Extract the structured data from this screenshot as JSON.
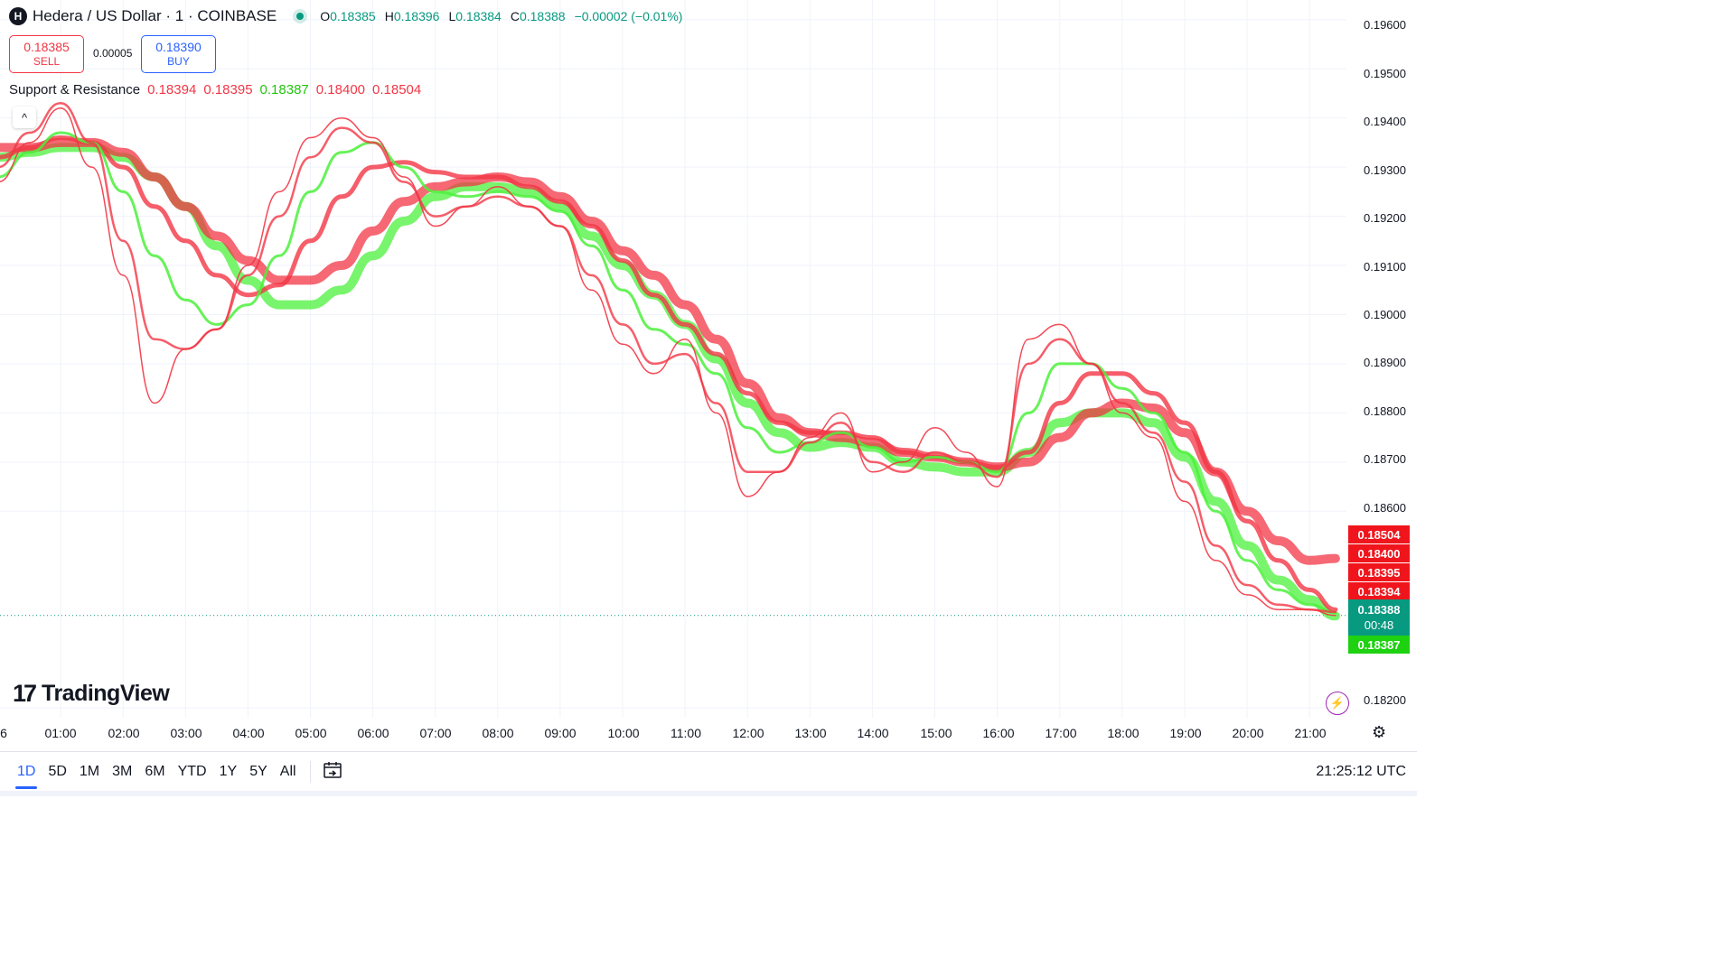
{
  "header": {
    "logo_letter": "H",
    "symbol": "Hedera / US Dollar · 1 · COINBASE",
    "ohlc": {
      "o_key": "O",
      "o": "0.18385",
      "h_key": "H",
      "h": "0.18396",
      "l_key": "L",
      "l": "0.18384",
      "c_key": "C",
      "c": "0.18388",
      "change": "−0.00002 (−0.01%)"
    }
  },
  "trade": {
    "sell_price": "0.18385",
    "sell_label": "SELL",
    "spread": "0.00005",
    "buy_price": "0.18390",
    "buy_label": "BUY"
  },
  "indicator": {
    "name": "Support & Resistance",
    "values": [
      "0.18394",
      "0.18395",
      "0.18387",
      "0.18400",
      "0.18504"
    ]
  },
  "controls": {
    "collapse_glyph": "^"
  },
  "branding": {
    "logo_mark": "17",
    "name": "TradingView"
  },
  "colors": {
    "up": "#089981",
    "resistance": "#f23645",
    "support": "#4cf03c",
    "accent": "#2962ff",
    "text": "#131722"
  },
  "y_axis": [
    "0.19600",
    "0.19500",
    "0.19400",
    "0.19300",
    "0.19200",
    "0.19100",
    "0.19000",
    "0.18900",
    "0.18800",
    "0.18700",
    "0.18600",
    "0.18200"
  ],
  "price_tags": {
    "red": [
      "0.18504",
      "0.18400",
      "0.18395",
      "0.18394"
    ],
    "last_price": "0.18388",
    "countdown": "00:48",
    "green": "0.18387"
  },
  "x_axis": [
    "6",
    "01:00",
    "02:00",
    "03:00",
    "04:00",
    "05:00",
    "06:00",
    "07:00",
    "08:00",
    "09:00",
    "10:00",
    "11:00",
    "12:00",
    "13:00",
    "14:00",
    "15:00",
    "16:00",
    "17:00",
    "18:00",
    "19:00",
    "20:00",
    "21:00"
  ],
  "bottom_bar": {
    "ranges": [
      "1D",
      "5D",
      "1M",
      "3M",
      "6M",
      "YTD",
      "1Y",
      "5Y",
      "All"
    ],
    "active_range": "1D",
    "calendar_icon": "calendar-goto-icon",
    "clock": "21:25:12 UTC"
  },
  "icons": {
    "flash": "lightning-icon",
    "settings": "gear-icon"
  },
  "chart_data": {
    "type": "line",
    "x": [
      "00:00",
      "00:30",
      "01:00",
      "01:30",
      "02:00",
      "02:30",
      "03:00",
      "03:30",
      "04:00",
      "04:30",
      "05:00",
      "05:30",
      "06:00",
      "06:30",
      "07:00",
      "07:30",
      "08:00",
      "08:30",
      "09:00",
      "09:30",
      "10:00",
      "10:30",
      "11:00",
      "11:30",
      "12:00",
      "12:30",
      "13:00",
      "13:30",
      "14:00",
      "14:30",
      "15:00",
      "15:30",
      "16:00",
      "16:30",
      "17:00",
      "17:30",
      "18:00",
      "18:30",
      "19:00",
      "19:30",
      "20:00",
      "20:30",
      "21:00",
      "21:25"
    ],
    "series": [
      {
        "values": [
          0.1927,
          0.1935,
          0.1942,
          0.193,
          0.1908,
          0.1882,
          0.1893,
          0.1897,
          0.191,
          0.1925,
          0.1936,
          0.194,
          0.1936,
          0.1928,
          0.1918,
          0.1922,
          0.1926,
          0.1922,
          0.1918,
          0.1905,
          0.1894,
          0.1888,
          0.1895,
          0.188,
          0.1863,
          0.1868,
          0.1875,
          0.188,
          0.1868,
          0.187,
          0.1877,
          0.1872,
          0.1865,
          0.1895,
          0.1898,
          0.189,
          0.188,
          0.1875,
          0.1862,
          0.185,
          0.1843,
          0.184,
          0.184,
          0.18388
        ]
      },
      {
        "values": [
          0.193,
          0.1937,
          0.1943,
          0.1935,
          0.1915,
          0.1895,
          0.1893,
          0.1897,
          0.1908,
          0.192,
          0.1932,
          0.1938,
          0.1935,
          0.1927,
          0.192,
          0.1922,
          0.1924,
          0.1922,
          0.1918,
          0.1908,
          0.1898,
          0.189,
          0.1892,
          0.1882,
          0.1868,
          0.1868,
          0.1874,
          0.1878,
          0.187,
          0.1868,
          0.1872,
          0.187,
          0.1867,
          0.189,
          0.1895,
          0.189,
          0.1882,
          0.1876,
          0.1866,
          0.1853,
          0.1845,
          0.1841,
          0.184,
          0.18395
        ]
      },
      {
        "values": [
          0.1928,
          0.1933,
          0.1937,
          0.1935,
          0.1925,
          0.1912,
          0.1903,
          0.1898,
          0.1902,
          0.1912,
          0.1925,
          0.1933,
          0.1935,
          0.193,
          0.1925,
          0.1924,
          0.1925,
          0.1924,
          0.1921,
          0.1914,
          0.1905,
          0.1897,
          0.1894,
          0.1888,
          0.1877,
          0.1872,
          0.1874,
          0.1876,
          0.1873,
          0.187,
          0.1871,
          0.187,
          0.1868,
          0.188,
          0.189,
          0.189,
          0.1885,
          0.188,
          0.1872,
          0.186,
          0.185,
          0.1844,
          0.1841,
          0.18394
        ]
      },
      {
        "values": [
          0.1932,
          0.1934,
          0.1936,
          0.1935,
          0.193,
          0.1922,
          0.1915,
          0.1908,
          0.1904,
          0.1906,
          0.1915,
          0.1924,
          0.193,
          0.1931,
          0.1929,
          0.1928,
          0.1928,
          0.1926,
          0.1923,
          0.1918,
          0.1911,
          0.1904,
          0.1898,
          0.1892,
          0.1884,
          0.1878,
          0.1876,
          0.1876,
          0.1875,
          0.1872,
          0.1871,
          0.187,
          0.1869,
          0.1872,
          0.1882,
          0.1888,
          0.1888,
          0.1884,
          0.1878,
          0.1868,
          0.1858,
          0.185,
          0.1844,
          0.184
        ]
      },
      {
        "values": [
          0.1934,
          0.1934,
          0.1935,
          0.1935,
          0.1933,
          0.1928,
          0.1922,
          0.1916,
          0.1911,
          0.1907,
          0.1907,
          0.191,
          0.1917,
          0.1923,
          0.1926,
          0.1927,
          0.1928,
          0.1927,
          0.1924,
          0.1919,
          0.1913,
          0.1908,
          0.1902,
          0.1895,
          0.1886,
          0.1879,
          0.1876,
          0.1875,
          0.1874,
          0.1872,
          0.1871,
          0.187,
          0.1869,
          0.187,
          0.1875,
          0.188,
          0.1882,
          0.1881,
          0.1876,
          0.1868,
          0.186,
          0.1854,
          0.185,
          0.18504
        ]
      },
      {
        "values": [
          0.1932,
          0.1933,
          0.1934,
          0.1934,
          0.1932,
          0.1928,
          0.1922,
          0.1914,
          0.1907,
          0.1902,
          0.1902,
          0.1905,
          0.1912,
          0.1919,
          0.1924,
          0.1926,
          0.1926,
          0.1925,
          0.1922,
          0.1916,
          0.191,
          0.1904,
          0.1898,
          0.1891,
          0.1882,
          0.1876,
          0.1873,
          0.1874,
          0.1873,
          0.187,
          0.1869,
          0.1868,
          0.1868,
          0.1872,
          0.1878,
          0.188,
          0.188,
          0.1878,
          0.1871,
          0.1862,
          0.1853,
          0.1846,
          0.1842,
          0.18387
        ]
      }
    ],
    "ylim": [
      0.1818,
      0.1964
    ],
    "grid": true
  }
}
